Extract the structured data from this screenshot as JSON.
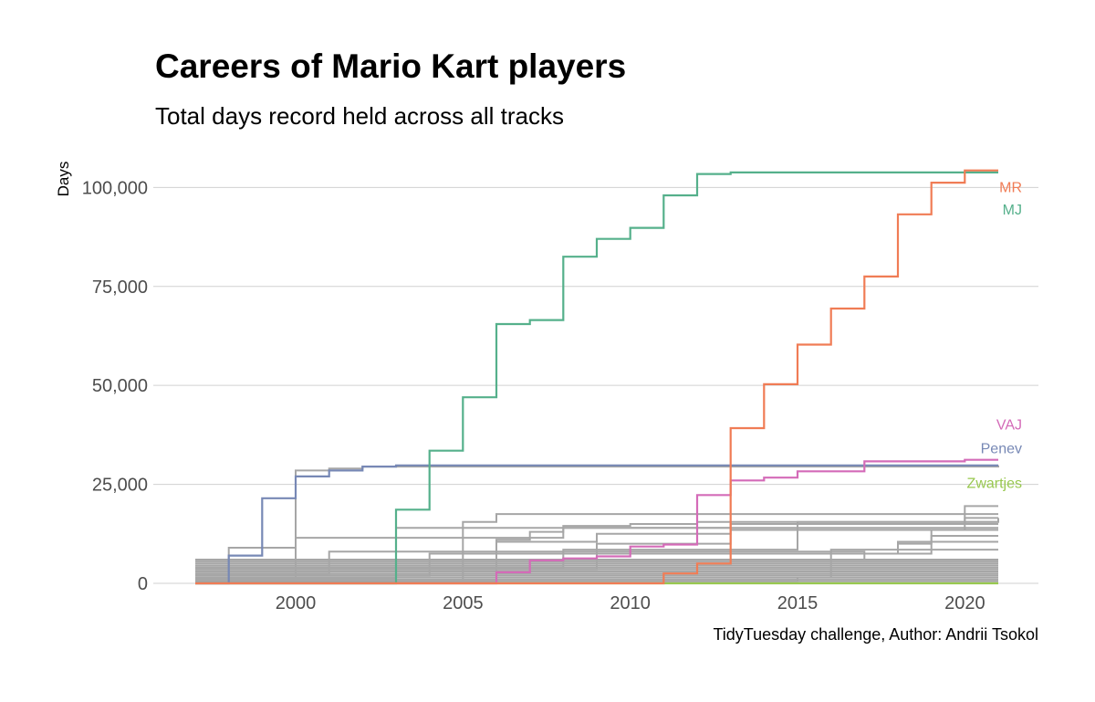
{
  "title": "Careers of Mario Kart players",
  "subtitle": "Total days record held across all tracks",
  "caption": "TidyTuesday challenge, Author: Andrii Tsokol",
  "chart_data": {
    "type": "line",
    "step": true,
    "ylabel": "Days",
    "xlabel": "",
    "xlim": [
      1997,
      2021
    ],
    "ylim": [
      0,
      104000
    ],
    "x_ticks": [
      2000,
      2005,
      2010,
      2015,
      2020
    ],
    "x_tick_labels": [
      "2000",
      "2005",
      "2010",
      "2015",
      "2020"
    ],
    "y_ticks": [
      0,
      25000,
      50000,
      75000,
      100000
    ],
    "y_tick_labels": [
      "0",
      "25,000",
      "50,000",
      "75,000",
      "100,000"
    ],
    "grid": "horizontal",
    "legend": "direct labels at right",
    "highlighted_series": [
      {
        "name": "MR",
        "color": "#F07C55",
        "x": [
          1997,
          2011,
          2012,
          2013,
          2014,
          2015,
          2016,
          2017,
          2018,
          2019,
          2020,
          2021
        ],
        "y": [
          0,
          2500,
          5000,
          39200,
          50300,
          60300,
          69400,
          77500,
          93200,
          101200,
          104300,
          104300
        ]
      },
      {
        "name": "MJ",
        "color": "#55B08B",
        "x": [
          1997,
          2003,
          2004,
          2005,
          2006,
          2007,
          2008,
          2009,
          2010,
          2011,
          2012,
          2013,
          2021
        ],
        "y": [
          0,
          18600,
          33500,
          47000,
          65500,
          66500,
          82500,
          87000,
          89800,
          98000,
          103400,
          103800,
          103800
        ]
      },
      {
        "name": "VAJ",
        "color": "#D46BB8",
        "x": [
          1997,
          2006,
          2007,
          2008,
          2009,
          2010,
          2011,
          2012,
          2013,
          2014,
          2015,
          2017,
          2020,
          2021
        ],
        "y": [
          0,
          2800,
          5800,
          6300,
          6800,
          9300,
          9800,
          22300,
          26000,
          26700,
          28300,
          30800,
          31200,
          31200
        ]
      },
      {
        "name": "Penev",
        "color": "#7788B5",
        "x": [
          1997,
          1998,
          1999,
          2000,
          2001,
          2002,
          2003,
          2021
        ],
        "y": [
          0,
          7000,
          21500,
          27000,
          28500,
          29500,
          29800,
          29800
        ]
      },
      {
        "name": "Zwartjes",
        "color": "#98C84F",
        "x": [
          1997,
          2021
        ],
        "y": [
          0,
          0
        ]
      }
    ],
    "other_series_color": "#A6A6A6",
    "other_series": [
      {
        "x": [
          1997,
          1998,
          2000,
          2001,
          2002,
          2021
        ],
        "y": [
          1500,
          9000,
          28500,
          29000,
          29500,
          29800
        ]
      },
      {
        "x": [
          1997,
          2003,
          2004,
          2013,
          2021
        ],
        "y": [
          500,
          14000,
          14000,
          15000,
          15000
        ]
      },
      {
        "x": [
          1997,
          2005,
          2006,
          2020,
          2021
        ],
        "y": [
          300,
          15500,
          17500,
          17500,
          17500
        ]
      },
      {
        "x": [
          1997,
          2006,
          2007,
          2008,
          2010,
          2012,
          2021
        ],
        "y": [
          500,
          11000,
          13000,
          14500,
          15000,
          15500,
          16500
        ]
      },
      {
        "x": [
          1997,
          2000,
          2001,
          2007,
          2008,
          2013,
          2021
        ],
        "y": [
          1000,
          11500,
          11500,
          11500,
          14000,
          14000,
          14000
        ]
      },
      {
        "x": [
          1997,
          2006,
          2009,
          2013,
          2020,
          2021
        ],
        "y": [
          200,
          10500,
          12500,
          13500,
          19500,
          19500
        ]
      },
      {
        "x": [
          1997,
          2009,
          2013,
          2020,
          2021
        ],
        "y": [
          3500,
          10000,
          15000,
          16500,
          16500
        ]
      },
      {
        "x": [
          1997,
          2008,
          2015,
          2021
        ],
        "y": [
          4000,
          8500,
          15500,
          15500
        ]
      },
      {
        "x": [
          1997,
          2004,
          2005,
          2018,
          2019,
          2021
        ],
        "y": [
          2000,
          7500,
          7500,
          10000,
          13500,
          13500
        ]
      },
      {
        "x": [
          1997,
          2001,
          2004,
          2017,
          2018,
          2021
        ],
        "y": [
          2500,
          8000,
          8000,
          7500,
          10500,
          10500
        ]
      },
      {
        "x": [
          1997,
          2003,
          2017,
          2019,
          2021
        ],
        "y": [
          1200,
          6000,
          7500,
          12000,
          12000
        ]
      },
      {
        "x": [
          1997,
          2015,
          2016,
          2021
        ],
        "y": [
          500,
          1500,
          8500,
          8500
        ]
      },
      {
        "x": [
          1997,
          2021
        ],
        "y": [
          6000,
          6000
        ]
      },
      {
        "x": [
          1997,
          2021
        ],
        "y": [
          5500,
          5500
        ]
      },
      {
        "x": [
          1997,
          2021
        ],
        "y": [
          5000,
          5000
        ]
      },
      {
        "x": [
          1997,
          2021
        ],
        "y": [
          4500,
          4500
        ]
      },
      {
        "x": [
          1997,
          2021
        ],
        "y": [
          4000,
          4000
        ]
      },
      {
        "x": [
          1997,
          2021
        ],
        "y": [
          3500,
          3500
        ]
      },
      {
        "x": [
          1997,
          2021
        ],
        "y": [
          3000,
          3000
        ]
      },
      {
        "x": [
          1997,
          2021
        ],
        "y": [
          2500,
          2500
        ]
      },
      {
        "x": [
          1997,
          2021
        ],
        "y": [
          2000,
          2000
        ]
      },
      {
        "x": [
          1997,
          2021
        ],
        "y": [
          1500,
          1500
        ]
      },
      {
        "x": [
          1997,
          2021
        ],
        "y": [
          1000,
          1000
        ]
      },
      {
        "x": [
          1997,
          2021
        ],
        "y": [
          500,
          500
        ]
      },
      {
        "x": [
          1997,
          2021
        ],
        "y": [
          0,
          0
        ]
      }
    ],
    "direct_labels": [
      {
        "text": "MR",
        "color": "#F07C55",
        "y": 100200
      },
      {
        "text": "MJ",
        "color": "#55B08B",
        "y": 94500
      },
      {
        "text": "VAJ",
        "color": "#D46BB8",
        "y": 40200
      },
      {
        "text": "Penev",
        "color": "#7788B5",
        "y": 34200
      },
      {
        "text": "Zwartjes",
        "color": "#98C84F",
        "y": 25500
      }
    ]
  }
}
